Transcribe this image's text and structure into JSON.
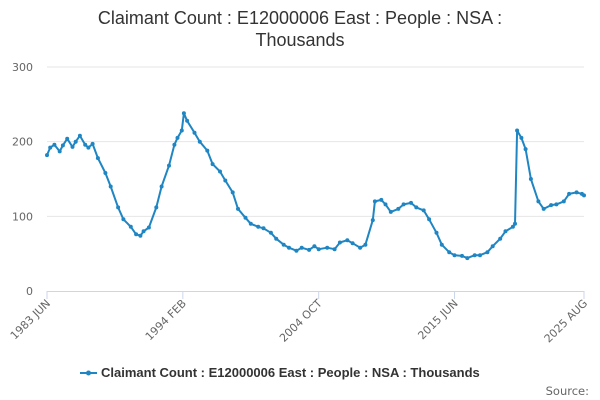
{
  "chart_data": {
    "type": "line",
    "title_lines": [
      "Claimant Count : E12000006 East : People : NSA :",
      "Thousands"
    ],
    "source_label": "Source:",
    "ylim": [
      0,
      300
    ],
    "yticks": [
      "0",
      "100",
      "200",
      "300"
    ],
    "xrange": [
      "1983-06",
      "2025-08"
    ],
    "xticks": [
      {
        "label": "1983 JUN",
        "date": "1983-06"
      },
      {
        "label": "1994 FEB",
        "date": "1994-02"
      },
      {
        "label": "2004 OCT",
        "date": "2004-10"
      },
      {
        "label": "2015 JUN",
        "date": "2015-06"
      },
      {
        "label": "2025 AUG",
        "date": "2025-08"
      }
    ],
    "grid": "horizontal",
    "legend_position": "bottom",
    "colors": {
      "series": "#1f86c3",
      "grid": "#e6e6e6",
      "axis": "#ccd6eb",
      "text": "#333333"
    },
    "series": [
      {
        "name": "Claimant Count : E12000006 East : People : NSA : Thousands",
        "points": [
          [
            "1983-06",
            182
          ],
          [
            "1983-09",
            192
          ],
          [
            "1984-01",
            196
          ],
          [
            "1984-06",
            187
          ],
          [
            "1984-09",
            195
          ],
          [
            "1985-01",
            204
          ],
          [
            "1985-06",
            193
          ],
          [
            "1985-09",
            200
          ],
          [
            "1986-01",
            208
          ],
          [
            "1986-06",
            196
          ],
          [
            "1986-09",
            192
          ],
          [
            "1987-01",
            197
          ],
          [
            "1987-06",
            178
          ],
          [
            "1988-01",
            158
          ],
          [
            "1988-06",
            140
          ],
          [
            "1989-01",
            112
          ],
          [
            "1989-06",
            96
          ],
          [
            "1990-01",
            86
          ],
          [
            "1990-06",
            76
          ],
          [
            "1990-10",
            74
          ],
          [
            "1991-01",
            80
          ],
          [
            "1991-06",
            85
          ],
          [
            "1992-01",
            112
          ],
          [
            "1992-06",
            140
          ],
          [
            "1993-01",
            168
          ],
          [
            "1993-06",
            196
          ],
          [
            "1993-09",
            205
          ],
          [
            "1994-01",
            215
          ],
          [
            "1994-03",
            238
          ],
          [
            "1994-06",
            228
          ],
          [
            "1995-01",
            212
          ],
          [
            "1995-06",
            200
          ],
          [
            "1996-01",
            188
          ],
          [
            "1996-06",
            170
          ],
          [
            "1997-01",
            160
          ],
          [
            "1997-06",
            148
          ],
          [
            "1998-01",
            132
          ],
          [
            "1998-06",
            110
          ],
          [
            "1999-01",
            98
          ],
          [
            "1999-06",
            90
          ],
          [
            "2000-01",
            86
          ],
          [
            "2000-06",
            84
          ],
          [
            "2001-01",
            78
          ],
          [
            "2001-06",
            70
          ],
          [
            "2002-01",
            62
          ],
          [
            "2002-06",
            58
          ],
          [
            "2003-01",
            54
          ],
          [
            "2003-06",
            58
          ],
          [
            "2004-01",
            55
          ],
          [
            "2004-06",
            60
          ],
          [
            "2004-10",
            56
          ],
          [
            "2005-06",
            58
          ],
          [
            "2006-01",
            56
          ],
          [
            "2006-06",
            65
          ],
          [
            "2007-01",
            68
          ],
          [
            "2007-06",
            64
          ],
          [
            "2008-01",
            58
          ],
          [
            "2008-06",
            62
          ],
          [
            "2009-01",
            95
          ],
          [
            "2009-03",
            120
          ],
          [
            "2009-09",
            122
          ],
          [
            "2010-01",
            116
          ],
          [
            "2010-06",
            106
          ],
          [
            "2011-01",
            110
          ],
          [
            "2011-06",
            116
          ],
          [
            "2012-01",
            118
          ],
          [
            "2012-06",
            112
          ],
          [
            "2013-01",
            108
          ],
          [
            "2013-06",
            96
          ],
          [
            "2014-01",
            78
          ],
          [
            "2014-06",
            62
          ],
          [
            "2015-01",
            52
          ],
          [
            "2015-06",
            48
          ],
          [
            "2016-01",
            47
          ],
          [
            "2016-06",
            44
          ],
          [
            "2017-01",
            48
          ],
          [
            "2017-06",
            48
          ],
          [
            "2018-01",
            52
          ],
          [
            "2018-06",
            60
          ],
          [
            "2019-01",
            70
          ],
          [
            "2019-06",
            80
          ],
          [
            "2020-01",
            86
          ],
          [
            "2020-03",
            90
          ],
          [
            "2020-05",
            215
          ],
          [
            "2020-09",
            205
          ],
          [
            "2021-01",
            190
          ],
          [
            "2021-06",
            150
          ],
          [
            "2022-01",
            120
          ],
          [
            "2022-06",
            110
          ],
          [
            "2023-01",
            115
          ],
          [
            "2023-06",
            116
          ],
          [
            "2024-01",
            120
          ],
          [
            "2024-06",
            130
          ],
          [
            "2025-01",
            132
          ],
          [
            "2025-06",
            130
          ],
          [
            "2025-08",
            128
          ]
        ]
      }
    ]
  }
}
